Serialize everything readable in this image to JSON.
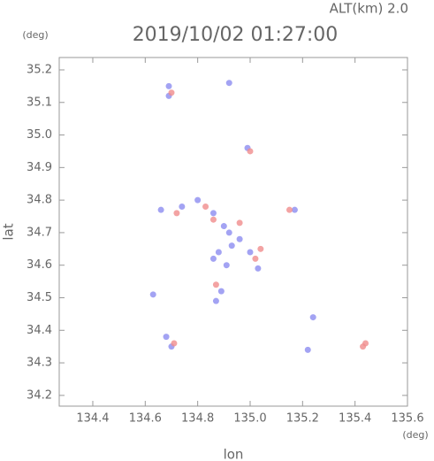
{
  "chart_data": {
    "type": "scatter",
    "title": "2019/10/02 01:27:00",
    "subtitle": "ALT(km) 2.0",
    "x_label": "lon",
    "y_label": "lat",
    "x_unit": "(deg)",
    "y_unit": "(deg)",
    "xlim": [
      134.272,
      135.6
    ],
    "ylim": [
      34.167,
      35.238
    ],
    "xticks": [
      134.4,
      134.6,
      134.8,
      {
        "value": 135,
        "label": "135.0"
      },
      135.2,
      135.4,
      135.6
    ],
    "yticks": [
      34.2,
      34.3,
      34.4,
      34.5,
      34.6,
      34.7,
      34.8,
      34.9,
      {
        "value": 35,
        "label": "35.0"
      },
      35.1,
      35.2
    ],
    "series": [
      {
        "color": "#8c8cf0",
        "x": [
          134.69,
          134.69,
          134.92,
          134.99,
          134.66,
          134.74,
          134.8,
          134.86,
          134.9,
          134.92,
          134.88,
          134.86,
          134.91,
          134.93,
          134.96,
          135.0,
          134.89,
          134.87,
          134.68,
          134.7,
          135.03,
          135.22,
          135.24,
          135.17,
          134.63
        ],
        "y": [
          35.15,
          35.12,
          35.16,
          34.96,
          34.77,
          34.78,
          34.8,
          34.76,
          34.72,
          34.7,
          34.64,
          34.62,
          34.6,
          34.66,
          34.68,
          34.64,
          34.52,
          34.49,
          34.38,
          34.35,
          34.59,
          34.34,
          34.44,
          34.77,
          34.51
        ]
      },
      {
        "color": "#f08c8c",
        "x": [
          134.7,
          135.0,
          134.72,
          134.83,
          134.86,
          134.96,
          135.04,
          135.02,
          134.87,
          135.15,
          135.44,
          135.43,
          134.71
        ],
        "y": [
          35.13,
          34.95,
          34.76,
          34.78,
          34.74,
          34.73,
          34.65,
          34.62,
          34.54,
          34.77,
          34.36,
          34.35,
          34.36
        ]
      }
    ]
  }
}
